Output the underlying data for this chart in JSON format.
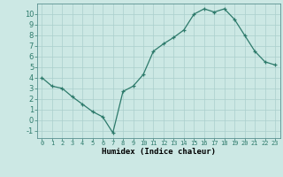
{
  "x": [
    0,
    1,
    2,
    3,
    4,
    5,
    6,
    7,
    8,
    9,
    10,
    11,
    12,
    13,
    14,
    15,
    16,
    17,
    18,
    19,
    20,
    21,
    22,
    23
  ],
  "y": [
    4.0,
    3.2,
    3.0,
    2.2,
    1.5,
    0.8,
    0.3,
    -1.2,
    2.7,
    3.2,
    4.3,
    6.5,
    7.2,
    7.8,
    8.5,
    10.0,
    10.5,
    10.2,
    10.5,
    9.5,
    8.0,
    6.5,
    5.5,
    5.2
  ],
  "line_color": "#2d7a6b",
  "marker": "+",
  "marker_size": 3,
  "xlabel": "Humidex (Indice chaleur)",
  "xlim": [
    -0.5,
    23.5
  ],
  "ylim": [
    -1.7,
    11.0
  ],
  "yticks": [
    -1,
    0,
    1,
    2,
    3,
    4,
    5,
    6,
    7,
    8,
    9,
    10
  ],
  "xticks": [
    0,
    1,
    2,
    3,
    4,
    5,
    6,
    7,
    8,
    9,
    10,
    11,
    12,
    13,
    14,
    15,
    16,
    17,
    18,
    19,
    20,
    21,
    22,
    23
  ],
  "bg_color": "#cce8e4",
  "grid_color": "#aacfcc",
  "fig_bg": "#cce8e4",
  "xlabel_fontsize": 6.5,
  "tick_fontsize_x": 5,
  "tick_fontsize_y": 6
}
